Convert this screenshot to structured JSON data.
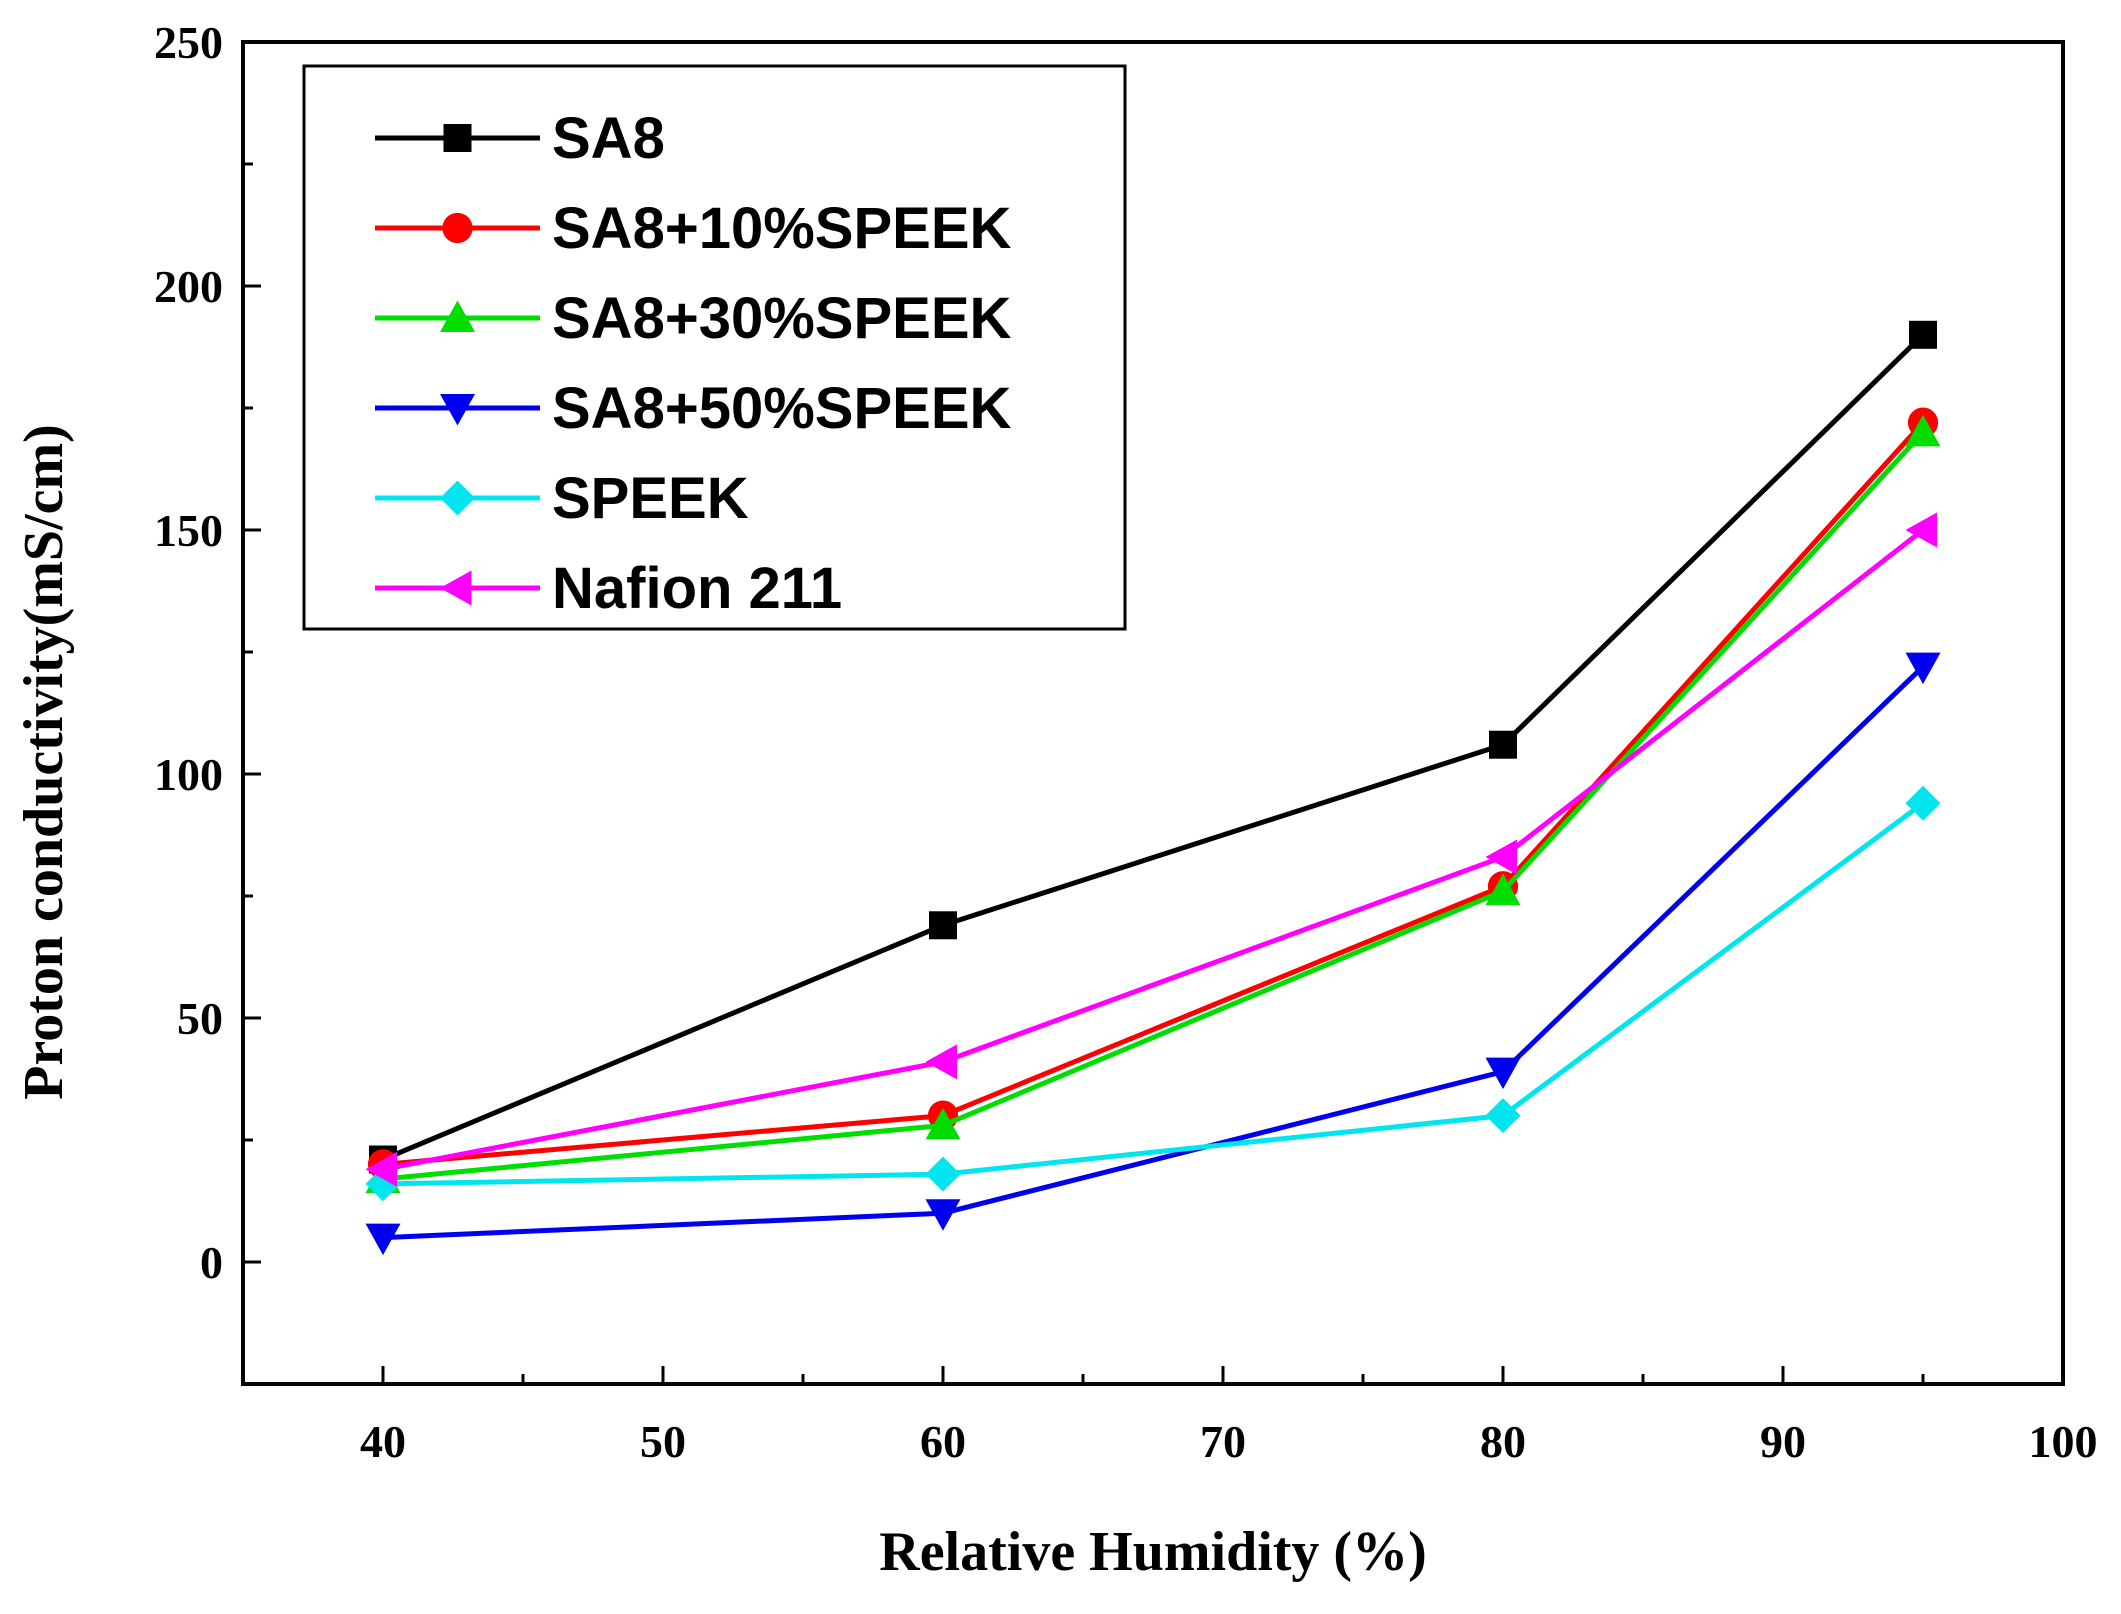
{
  "chart_data": {
    "type": "line",
    "xlabel": "Relative Humidity (%)",
    "ylabel": "Proton conductivity(mS/cm)",
    "xlim": [
      35,
      100
    ],
    "ylim": [
      -25,
      250
    ],
    "x_ticks": [
      40,
      50,
      60,
      70,
      80,
      90,
      100
    ],
    "y_ticks": [
      0,
      50,
      100,
      150,
      200,
      250
    ],
    "grid": false,
    "legend_position": "top-left",
    "x": [
      40,
      60,
      80,
      95
    ],
    "series": [
      {
        "name": "SA8",
        "values": [
          21,
          69,
          106,
          190
        ],
        "color": "#000000",
        "marker": "square"
      },
      {
        "name": "SA8+10%SPEEK",
        "values": [
          20,
          30,
          77,
          172
        ],
        "color": "#ff0000",
        "marker": "circle"
      },
      {
        "name": "SA8+30%SPEEK",
        "values": [
          17,
          28,
          76,
          170
        ],
        "color": "#00dd00",
        "marker": "triangle-up"
      },
      {
        "name": "SA8+50%SPEEK",
        "values": [
          5,
          10,
          39,
          122
        ],
        "color": "#0000ee",
        "marker": "triangle-down"
      },
      {
        "name": "SPEEK",
        "values": [
          16,
          18,
          30,
          94
        ],
        "color": "#00e5ee",
        "marker": "diamond"
      },
      {
        "name": "Nafion 211",
        "values": [
          19,
          41,
          83,
          150
        ],
        "color": "#ff00ff",
        "marker": "triangle-left"
      }
    ]
  }
}
